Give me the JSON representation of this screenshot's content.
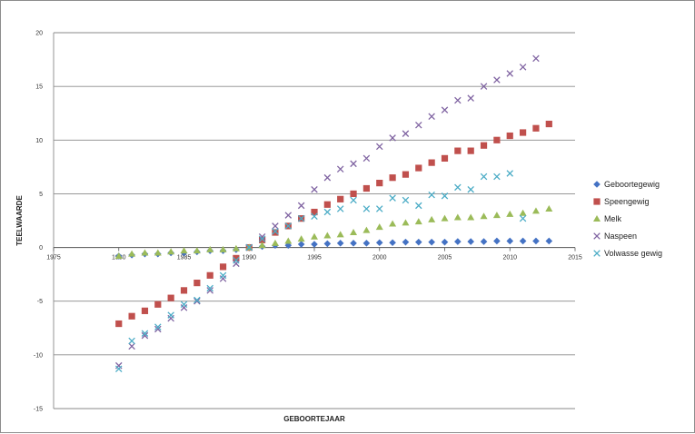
{
  "chart_data": {
    "type": "scatter",
    "title": "",
    "xlabel": "GEBOORTEJAAR",
    "ylabel": "TEELWAARDE",
    "xlim": [
      1975,
      2015
    ],
    "ylim": [
      -15,
      20
    ],
    "xticks": [
      1975,
      1980,
      1985,
      1990,
      1995,
      2000,
      2005,
      2010,
      2015
    ],
    "yticks": [
      20,
      15,
      10,
      5,
      0,
      -5,
      -10,
      -15
    ],
    "grid": "horizontal",
    "legend_position": "right",
    "series": [
      {
        "name": "Geboortegewig",
        "color": "#4472C4",
        "marker": "diamond",
        "x": [
          1980,
          1981,
          1982,
          1983,
          1984,
          1985,
          1986,
          1987,
          1988,
          1989,
          1990,
          1991,
          1992,
          1993,
          1994,
          1995,
          1996,
          1997,
          1998,
          1999,
          2000,
          2001,
          2002,
          2003,
          2004,
          2005,
          2006,
          2007,
          2008,
          2009,
          2010,
          2011,
          2012,
          2013
        ],
        "y": [
          -0.8,
          -0.7,
          -0.6,
          -0.6,
          -0.5,
          -0.5,
          -0.4,
          -0.3,
          -0.3,
          -0.2,
          0.0,
          0.1,
          0.2,
          0.2,
          0.3,
          0.3,
          0.35,
          0.4,
          0.4,
          0.4,
          0.45,
          0.45,
          0.5,
          0.5,
          0.5,
          0.5,
          0.55,
          0.55,
          0.55,
          0.6,
          0.6,
          0.6,
          0.6,
          0.6
        ]
      },
      {
        "name": "Speengewig",
        "color": "#C0504D",
        "marker": "square",
        "x": [
          1980,
          1981,
          1982,
          1983,
          1984,
          1985,
          1986,
          1987,
          1988,
          1989,
          1990,
          1991,
          1992,
          1993,
          1994,
          1995,
          1996,
          1997,
          1998,
          1999,
          2000,
          2001,
          2002,
          2003,
          2004,
          2005,
          2006,
          2007,
          2008,
          2009,
          2010,
          2011,
          2012,
          2013
        ],
        "y": [
          -7.1,
          -6.4,
          -5.9,
          -5.3,
          -4.7,
          -4.0,
          -3.3,
          -2.6,
          -1.8,
          -1.0,
          0.0,
          0.7,
          1.4,
          2.0,
          2.7,
          3.3,
          4.0,
          4.5,
          5.0,
          5.5,
          6.0,
          6.5,
          6.8,
          7.4,
          7.9,
          8.3,
          9.0,
          9.0,
          9.5,
          10.0,
          10.4,
          10.7,
          11.1,
          11.5
        ]
      },
      {
        "name": "Melk",
        "color": "#9BBB59",
        "marker": "triangle",
        "x": [
          1980,
          1981,
          1982,
          1983,
          1984,
          1985,
          1986,
          1987,
          1988,
          1989,
          1990,
          1991,
          1992,
          1993,
          1994,
          1995,
          1996,
          1997,
          1998,
          1999,
          2000,
          2001,
          2002,
          2003,
          2004,
          2005,
          2006,
          2007,
          2008,
          2009,
          2010,
          2011,
          2012,
          2013
        ],
        "y": [
          -0.8,
          -0.6,
          -0.5,
          -0.5,
          -0.4,
          -0.3,
          -0.3,
          -0.2,
          -0.2,
          -0.1,
          0.0,
          0.2,
          0.4,
          0.6,
          0.8,
          1.0,
          1.1,
          1.2,
          1.4,
          1.6,
          1.9,
          2.2,
          2.3,
          2.4,
          2.6,
          2.7,
          2.8,
          2.8,
          2.9,
          3.0,
          3.1,
          3.2,
          3.4,
          3.6
        ]
      },
      {
        "name": "Naspeen",
        "color": "#8064A2",
        "marker": "x",
        "x": [
          1980,
          1981,
          1982,
          1983,
          1984,
          1985,
          1986,
          1987,
          1988,
          1989,
          1990,
          1991,
          1992,
          1993,
          1994,
          1995,
          1996,
          1997,
          1998,
          1999,
          2000,
          2001,
          2002,
          2003,
          2004,
          2005,
          2006,
          2007,
          2008,
          2009,
          2010,
          2011,
          2012
        ],
        "y": [
          -11.0,
          -9.2,
          -8.2,
          -7.6,
          -6.6,
          -5.6,
          -5.0,
          -4.0,
          -2.9,
          -1.5,
          0.0,
          1.0,
          2.0,
          3.0,
          3.9,
          5.4,
          6.5,
          7.3,
          7.8,
          8.3,
          9.4,
          10.2,
          10.6,
          11.4,
          12.2,
          12.8,
          13.7,
          13.9,
          15.0,
          15.6,
          16.2,
          16.8,
          17.6
        ]
      },
      {
        "name": "Volwasse gewig",
        "color": "#4BACC6",
        "marker": "x",
        "x": [
          1980,
          1981,
          1982,
          1983,
          1984,
          1985,
          1986,
          1987,
          1988,
          1989,
          1990,
          1991,
          1992,
          1993,
          1994,
          1995,
          1996,
          1997,
          1998,
          1999,
          2000,
          2001,
          2002,
          2003,
          2004,
          2005,
          2006,
          2007,
          2008,
          2009,
          2010,
          2011
        ],
        "y": [
          -11.3,
          -8.7,
          -8.0,
          -7.4,
          -6.3,
          -5.3,
          -4.9,
          -3.8,
          -2.6,
          -1.2,
          0.0,
          0.8,
          1.5,
          2.0,
          2.7,
          2.9,
          3.3,
          3.6,
          4.4,
          3.6,
          3.6,
          4.6,
          4.4,
          3.9,
          4.9,
          4.8,
          5.6,
          5.4,
          6.6,
          6.6,
          6.9,
          2.7
        ]
      }
    ]
  }
}
